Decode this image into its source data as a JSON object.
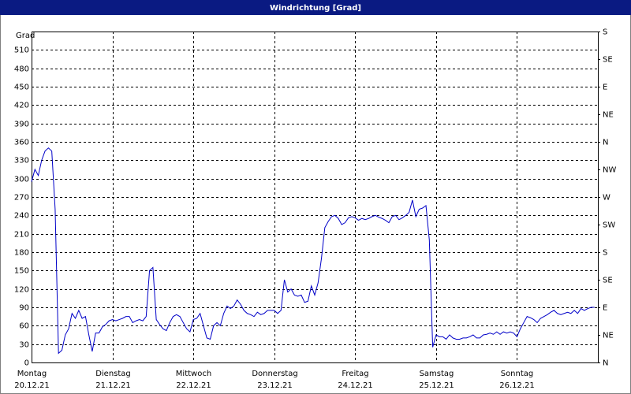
{
  "chart_data": {
    "type": "line",
    "title": "Windrichtung [Grad]",
    "y_label": "Grad",
    "color": "#0000c8",
    "xlim": [
      0,
      168
    ],
    "xticks": [
      {
        "value": 0,
        "label": "Montag"
      },
      {
        "value": 24,
        "label": "Dienstag"
      },
      {
        "value": 48,
        "label": "Mittwoch"
      },
      {
        "value": 72,
        "label": "Donnerstag"
      },
      {
        "value": 96,
        "label": "Freitag"
      },
      {
        "value": 120,
        "label": "Samstag"
      },
      {
        "value": 144,
        "label": "Sonntag"
      }
    ],
    "xtick_dates": [
      "20.12.21",
      "21.12.21",
      "22.12.21",
      "23.12.21",
      "24.12.21",
      "25.12.21",
      "26.12.21"
    ],
    "ylim": [
      0,
      540
    ],
    "yticks": [
      0,
      30,
      60,
      90,
      120,
      150,
      180,
      210,
      240,
      270,
      300,
      330,
      360,
      390,
      420,
      450,
      480,
      510
    ],
    "y2lim": [
      0,
      540
    ],
    "y2ticks": [
      {
        "value": 0,
        "label": "N"
      },
      {
        "value": 45,
        "label": "NE"
      },
      {
        "value": 90,
        "label": "E"
      },
      {
        "value": 135,
        "label": "SE"
      },
      {
        "value": 180,
        "label": "S"
      },
      {
        "value": 225,
        "label": "SW"
      },
      {
        "value": 270,
        "label": "W"
      },
      {
        "value": 315,
        "label": "NW"
      },
      {
        "value": 360,
        "label": "N"
      },
      {
        "value": 405,
        "label": "NE"
      },
      {
        "value": 450,
        "label": "E"
      },
      {
        "value": 495,
        "label": "SE"
      },
      {
        "value": 540,
        "label": "S"
      }
    ],
    "grid": true,
    "x": [
      0,
      1,
      2,
      3,
      4,
      5,
      6,
      7,
      8,
      9,
      10,
      11,
      12,
      13,
      14,
      15,
      16,
      17,
      18,
      19,
      20,
      21,
      22,
      23,
      24,
      25,
      26,
      27,
      28,
      29,
      30,
      31,
      32,
      33,
      34,
      35,
      36,
      37,
      38,
      39,
      40,
      41,
      42,
      43,
      44,
      45,
      46,
      47,
      48,
      49,
      50,
      51,
      52,
      53,
      54,
      55,
      56,
      57,
      58,
      59,
      60,
      61,
      62,
      63,
      64,
      65,
      66,
      67,
      68,
      69,
      70,
      71,
      72,
      73,
      74,
      75,
      76,
      77,
      78,
      79,
      80,
      81,
      82,
      83,
      84,
      85,
      86,
      87,
      88,
      89,
      90,
      91,
      92,
      93,
      94,
      95,
      96,
      97,
      98,
      99,
      100,
      101,
      102,
      103,
      104,
      105,
      106,
      107,
      108,
      109,
      110,
      111,
      112,
      113,
      114,
      115,
      116,
      117,
      118,
      119,
      120,
      121,
      122,
      123,
      124,
      125,
      126,
      127,
      128,
      129,
      130,
      131,
      132,
      133,
      134,
      135,
      136,
      137,
      138,
      139,
      140,
      141,
      142,
      143,
      144,
      145,
      146,
      147,
      148,
      149,
      150,
      151,
      152,
      153,
      154,
      155,
      156,
      157,
      158,
      159,
      160,
      161,
      162,
      163,
      164,
      165,
      166,
      167
    ],
    "values": [
      295,
      315,
      305,
      330,
      345,
      350,
      345,
      250,
      15,
      20,
      45,
      55,
      80,
      72,
      85,
      72,
      75,
      45,
      18,
      48,
      48,
      58,
      62,
      68,
      70,
      68,
      70,
      72,
      75,
      75,
      65,
      68,
      70,
      68,
      75,
      150,
      155,
      70,
      62,
      55,
      52,
      65,
      75,
      78,
      75,
      65,
      55,
      50,
      70,
      72,
      80,
      60,
      40,
      38,
      60,
      65,
      60,
      80,
      92,
      88,
      92,
      102,
      95,
      85,
      80,
      78,
      75,
      82,
      78,
      80,
      85,
      85,
      85,
      80,
      85,
      135,
      115,
      120,
      110,
      108,
      110,
      98,
      100,
      125,
      110,
      130,
      170,
      220,
      230,
      238,
      240,
      235,
      225,
      228,
      236,
      238,
      236,
      232,
      235,
      233,
      235,
      238,
      240,
      237,
      235,
      232,
      228,
      238,
      240,
      233,
      236,
      240,
      245,
      265,
      238,
      250,
      252,
      256,
      200,
      25,
      45,
      42,
      42,
      38,
      45,
      40,
      38,
      38,
      40,
      40,
      42,
      45,
      40,
      40,
      45,
      46,
      48,
      46,
      50,
      46,
      50,
      48,
      50,
      48,
      42,
      55,
      65,
      75,
      73,
      70,
      65,
      72,
      75,
      78,
      82,
      85,
      80,
      78,
      80,
      82,
      80,
      85,
      80,
      88,
      85,
      88,
      90,
      90
    ]
  }
}
